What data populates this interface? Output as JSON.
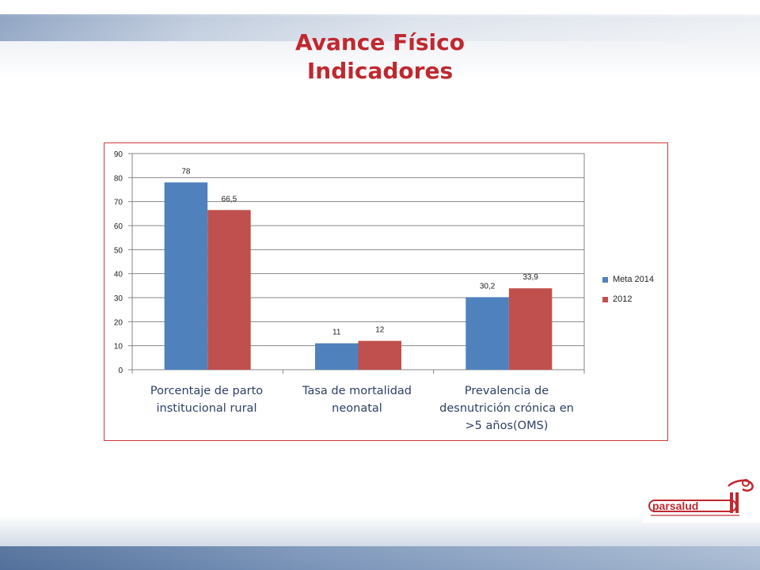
{
  "slide": {
    "title_line1": "Avance Físico",
    "title_line2": "Indicadores"
  },
  "chart_data": {
    "type": "bar",
    "title": "",
    "xlabel": "",
    "ylabel": "",
    "ylim": [
      0,
      90
    ],
    "yticks": [
      "0",
      "10",
      "20",
      "30",
      "40",
      "50",
      "60",
      "70",
      "80",
      "90"
    ],
    "grid": true,
    "legend_placement": "right",
    "categories": [
      "Porcentaje de parto institucional rural",
      "Tasa de mortalidad neonatal",
      "Prevalencia de desnutrición crónica en >5 años(OMS)"
    ],
    "series": [
      {
        "name": "Meta 2014",
        "color": "#4f81bd",
        "values": [
          78,
          11,
          30.2
        ],
        "labels": [
          "78",
          "11",
          "30,2"
        ]
      },
      {
        "name": "2012",
        "color": "#c0504d",
        "values": [
          66.5,
          12,
          33.9
        ],
        "labels": [
          "66,5",
          "12",
          "33,9"
        ]
      }
    ]
  },
  "logo": {
    "text": "parsalud II"
  }
}
